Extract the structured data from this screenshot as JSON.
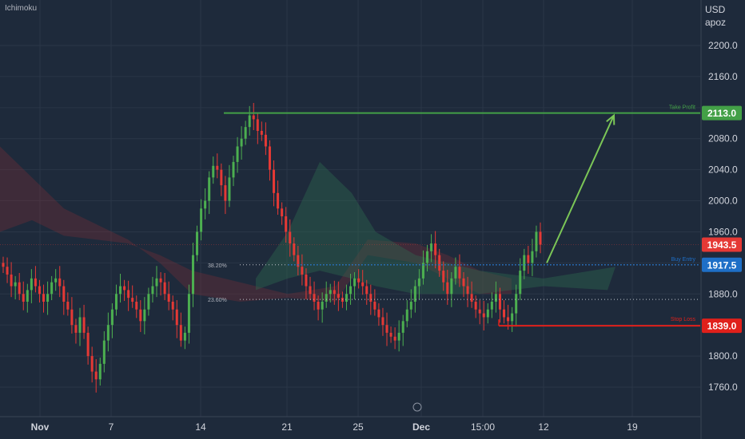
{
  "indicator_label": "Ichimoku",
  "currency": "USD",
  "unit_label": "apoz",
  "colors": {
    "background": "#1e2a3b",
    "candle_up": "#26a69a",
    "candle_down": "#ef5350",
    "bullish_candle": "#4caf50",
    "bearish_candle": "#e53935",
    "take_profit": "#43a047",
    "buy_entry": "#1e6fc7",
    "stop_loss": "#e0201b",
    "current_price": "#e53935",
    "cloud_bull": "#2e6b4f",
    "cloud_bear": "#7a2e36"
  },
  "chart_data": {
    "type": "candlestick",
    "y_axis": {
      "ticks": [
        "2200.0",
        "2160.0",
        "2120.0",
        "2080.0",
        "2040.0",
        "2000.0",
        "1960.0",
        "1920.0",
        "1880.0",
        "1840.0",
        "1800.0",
        "1760.0"
      ],
      "ylim": [
        1740,
        2230
      ]
    },
    "x_axis": {
      "ticks": [
        "Nov",
        "7",
        "14",
        "21",
        "25",
        "Dec",
        "15:00",
        "12",
        "19"
      ]
    },
    "levels": {
      "take_profit": {
        "label": "Take Profit",
        "value": "2113.0"
      },
      "buy_entry": {
        "label": "Buy Entry",
        "value": "1917.5"
      },
      "stop_loss": {
        "label": "Stop Loss",
        "value": "1839.0"
      },
      "current_price": {
        "value": "1943.5"
      }
    },
    "fib_levels": [
      {
        "label": "38.20%",
        "value": 1917.5
      },
      {
        "label": "23.60%",
        "value": 1873
      }
    ],
    "closes_path": [
      1915,
      1905,
      1890,
      1895,
      1880,
      1870,
      1885,
      1900,
      1890,
      1880,
      1870,
      1880,
      1895,
      1900,
      1890,
      1870,
      1860,
      1840,
      1830,
      1850,
      1830,
      1800,
      1780,
      1770,
      1790,
      1820,
      1840,
      1860,
      1880,
      1890,
      1885,
      1875,
      1870,
      1860,
      1845,
      1860,
      1880,
      1890,
      1900,
      1895,
      1880,
      1870,
      1860,
      1840,
      1820,
      1830,
      1880,
      1930,
      1960,
      1990,
      2000,
      2030,
      2045,
      2040,
      2020,
      2000,
      2030,
      2050,
      2070,
      2080,
      2095,
      2110,
      2105,
      2090,
      2085,
      2070,
      2040,
      2010,
      1990,
      1980,
      1960,
      1945,
      1930,
      1915,
      1905,
      1890,
      1880,
      1870,
      1860,
      1870,
      1880,
      1885,
      1880,
      1875,
      1870,
      1880,
      1890,
      1900,
      1895,
      1890,
      1880,
      1870,
      1860,
      1850,
      1840,
      1830,
      1825,
      1820,
      1830,
      1845,
      1860,
      1870,
      1890,
      1900,
      1920,
      1935,
      1945,
      1930,
      1910,
      1895,
      1880,
      1900,
      1915,
      1900,
      1890,
      1880,
      1870,
      1860,
      1855,
      1850,
      1860,
      1870,
      1880,
      1860,
      1850,
      1845,
      1855,
      1880,
      1910,
      1930,
      1920,
      1935,
      1960,
      1943.5
    ],
    "forecast_arrow": {
      "from": 1920,
      "to": 2110
    }
  }
}
